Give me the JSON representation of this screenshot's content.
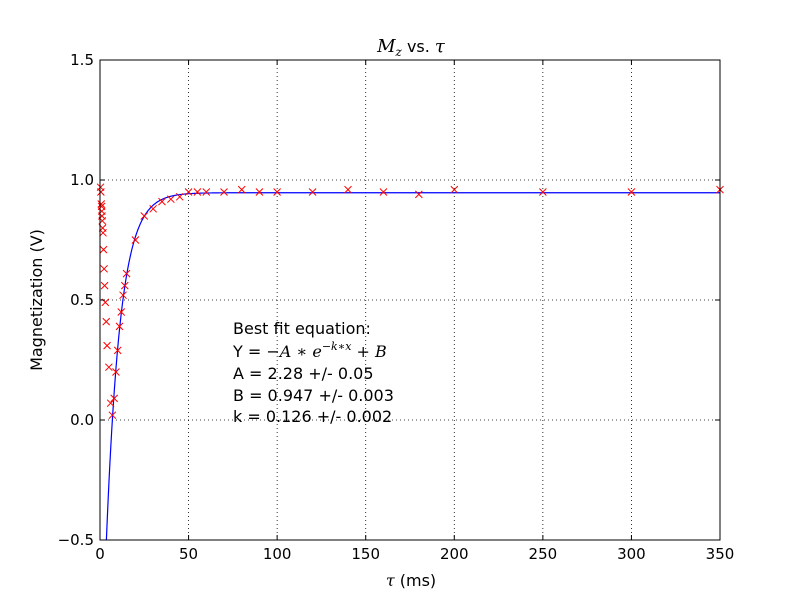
{
  "chart_data": {
    "type": "scatter",
    "title_prefix": "M",
    "title_sub": "z",
    "title_middle": " vs. ",
    "title_symbol": "τ",
    "xlabel_symbol": "τ",
    "xlabel_unit": " (ms)",
    "ylabel": "Magnetization (V)",
    "xlim": [
      0,
      350
    ],
    "ylim": [
      -0.5,
      1.5
    ],
    "x_ticks": [
      0,
      50,
      100,
      150,
      200,
      250,
      300,
      350
    ],
    "x_tick_labels": [
      "0",
      "50",
      "100",
      "150",
      "200",
      "250",
      "300",
      "350"
    ],
    "y_ticks": [
      -0.5,
      0.0,
      0.5,
      1.0,
      1.5
    ],
    "y_tick_labels": [
      "−0.5",
      "0.0",
      "0.5",
      "1.0",
      "1.5"
    ],
    "grid": true,
    "series": [
      {
        "marker": "x",
        "color": "#ff0000",
        "x": [
          0.3,
          0.5,
          0.7,
          0.9,
          1.0,
          1.1,
          1.3,
          1.5,
          1.7,
          2,
          2.3,
          2.6,
          3,
          3.5,
          4,
          5,
          6,
          7,
          8,
          9,
          10,
          11,
          12,
          13,
          14,
          15,
          20,
          25,
          30,
          35,
          40,
          45,
          50,
          55,
          60,
          70,
          80,
          90,
          100,
          120,
          140,
          160,
          180,
          200,
          250,
          300,
          350
        ],
        "y": [
          0.97,
          0.95,
          0.9,
          0.89,
          0.87,
          0.85,
          0.83,
          0.8,
          0.78,
          0.71,
          0.63,
          0.56,
          0.49,
          0.41,
          0.31,
          0.22,
          0.07,
          0.02,
          0.09,
          0.2,
          0.29,
          0.39,
          0.45,
          0.52,
          0.56,
          0.61,
          0.75,
          0.85,
          0.88,
          0.91,
          0.92,
          0.93,
          0.95,
          0.95,
          0.95,
          0.95,
          0.96,
          0.95,
          0.95,
          0.95,
          0.96,
          0.95,
          0.94,
          0.96,
          0.95,
          0.95,
          0.96
        ]
      },
      {
        "type": "line",
        "color": "#0000ff",
        "function": "Y = -A*exp(-k*x) + B",
        "params": {
          "A": 2.28,
          "B": 0.947,
          "k": 0.126
        }
      }
    ],
    "annotation": {
      "line1": "Best fit equation:",
      "line2_prefix": "Y = ",
      "line2_math": "−A ∗ e",
      "line2_exp": "−k∗x",
      "line2_tail": " + B",
      "line3": "A = 2.28 +/- 0.05",
      "line4": "B = 0.947 +/- 0.003",
      "line5": "k = 0.126 +/- 0.002"
    }
  }
}
